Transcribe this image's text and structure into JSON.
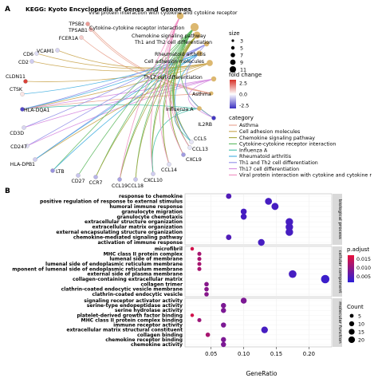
{
  "panel_a": {
    "label": "A",
    "title": "KEGG: Kyoto Encyclopedia of Genes and Genomes",
    "size_legend_title": "size",
    "size_values": [
      3,
      5,
      7,
      9,
      11
    ],
    "fold_legend_title": "fold change",
    "fold_ticks": [
      "2.5",
      "0.0",
      "-2.5"
    ],
    "category_legend_title": "category",
    "colors": {
      "term": "#dcb870",
      "fold_high": "#d73027",
      "fold_mid": "#ffffff",
      "fold_low": "#3a2fc0"
    }
  },
  "panel_b": {
    "label": "B",
    "x_axis_label": "GeneRatio",
    "p_legend_title": "p.adjust",
    "p_ticks": [
      "0.015",
      "0.010",
      "0.005"
    ],
    "count_legend_title": "Count",
    "count_values": [
      5,
      10,
      15,
      20
    ],
    "colors": {
      "p_high": "#e8103a",
      "p_low": "#2b1fd8",
      "strip_bg": "#d9d9d9",
      "panel_bg": "#ffffff"
    }
  },
  "chart_data": [
    {
      "type": "network",
      "categories": [
        {
          "name": "Asthma",
          "color": "#e8a08c"
        },
        {
          "name": "Cell adhesion molecules",
          "color": "#c9a44c"
        },
        {
          "name": "Chemokine signaling pathway",
          "color": "#a3a53a"
        },
        {
          "name": "Cytokine-cytokine receptor interaction",
          "color": "#5bb85e"
        },
        {
          "name": "Influenza A",
          "color": "#3fbfa8"
        },
        {
          "name": "Rheumatoid arthritis",
          "color": "#40aee0"
        },
        {
          "name": "Th1 and Th2 cell differentiation",
          "color": "#8f8de8"
        },
        {
          "name": "Th17 cell differentiation",
          "color": "#d58ae0"
        },
        {
          "name": "Viral protein interaction with cytokine and cytokine r",
          "color": "#f08cc0"
        }
      ],
      "genes": [
        {
          "name": "TPSB2",
          "fc": 1.2
        },
        {
          "name": "TPSAB1",
          "fc": 0.9
        },
        {
          "name": "FCER1A",
          "fc": 0.6
        },
        {
          "name": "VCAM1",
          "fc": -0.5
        },
        {
          "name": "CD6",
          "fc": -0.4
        },
        {
          "name": "CD2",
          "fc": -0.6
        },
        {
          "name": "CLDN11",
          "fc": 2.3
        },
        {
          "name": "CTSK",
          "fc": 0.3
        },
        {
          "name": "HLA-DQA1",
          "fc": -2.2
        },
        {
          "name": "CD3D",
          "fc": -0.5
        },
        {
          "name": "CD247",
          "fc": -0.4
        },
        {
          "name": "HLA-DPB1",
          "fc": -0.6
        },
        {
          "name": "LTB",
          "fc": -1.3
        },
        {
          "name": "CD27",
          "fc": -0.7
        },
        {
          "name": "CCR7",
          "fc": -0.9
        },
        {
          "name": "CCL19",
          "fc": -1.1
        },
        {
          "name": "CCL18",
          "fc": -0.7
        },
        {
          "name": "CXCL10",
          "fc": -0.6
        },
        {
          "name": "CCL14",
          "fc": -0.4
        },
        {
          "name": "CXCL9",
          "fc": -1.2
        },
        {
          "name": "CCL13",
          "fc": -0.3
        },
        {
          "name": "CCL5",
          "fc": -0.3
        },
        {
          "name": "IL2RB",
          "fc": -2.4
        }
      ],
      "terms": [
        {
          "name": "Viral protein interaction with cytokine and cytokine receptor",
          "size": 8
        },
        {
          "name": "Cytokine-cytokine receptor interaction",
          "size": 11
        },
        {
          "name": "Chemokine signaling pathway",
          "size": 9
        },
        {
          "name": "Th1 and Th2 cell differentiation",
          "size": 5
        },
        {
          "name": "Rheumatoid arthritis",
          "size": 6
        },
        {
          "name": "Cell adhesion molecules",
          "size": 7
        },
        {
          "name": "Th17 cell differentiation",
          "size": 5
        },
        {
          "name": "Asthma",
          "size": 3
        },
        {
          "name": "Influenza A",
          "size": 4
        }
      ]
    },
    {
      "type": "scatter",
      "xlabel": "GeneRatio",
      "x_ticks": [
        0.05,
        0.1,
        0.15,
        0.2
      ],
      "xlim": [
        0.01,
        0.235
      ],
      "p_range": [
        0.0005,
        0.018
      ],
      "count_range": [
        3,
        22
      ],
      "facets": [
        {
          "name": "biological process",
          "points": [
            {
              "term": "response to chemokine",
              "x": 0.077,
              "count": 7,
              "p": 0.004
            },
            {
              "term": "positive regulation of response to external stimulus",
              "x": 0.138,
              "count": 13,
              "p": 0.003
            },
            {
              "term": "humoral immune response",
              "x": 0.148,
              "count": 14,
              "p": 0.003
            },
            {
              "term": "granulocyte migration",
              "x": 0.1,
              "count": 9,
              "p": 0.003
            },
            {
              "term": "granulocyte chemotaxis",
              "x": 0.1,
              "count": 9,
              "p": 0.003
            },
            {
              "term": "extracellular structure organization",
              "x": 0.17,
              "count": 16,
              "p": 0.003
            },
            {
              "term": "extracellular matrix organization",
              "x": 0.17,
              "count": 16,
              "p": 0.003
            },
            {
              "term": "external encapsulating structure organization",
              "x": 0.17,
              "count": 16,
              "p": 0.003
            },
            {
              "term": "chemokine-mediated signaling pathway",
              "x": 0.077,
              "count": 7,
              "p": 0.004
            },
            {
              "term": "activation of immune response",
              "x": 0.127,
              "count": 12,
              "p": 0.003
            }
          ]
        },
        {
          "name": "cellular component",
          "points": [
            {
              "term": "microfibril",
              "x": 0.021,
              "count": 2,
              "p": 0.016
            },
            {
              "term": "MHC class II protein complex",
              "x": 0.032,
              "count": 3,
              "p": 0.012
            },
            {
              "term": "lumenal side of membrane",
              "x": 0.032,
              "count": 3,
              "p": 0.012
            },
            {
              "term": "lumenal side of endoplasmic reticulum membrane",
              "x": 0.032,
              "count": 3,
              "p": 0.012
            },
            {
              "term": "mponent of lumenal side of endoplasmic reticulum membrane",
              "x": 0.032,
              "count": 3,
              "p": 0.012
            },
            {
              "term": "external side of plasma membrane",
              "x": 0.175,
              "count": 17,
              "p": 0.003
            },
            {
              "term": "collagen-containing extracellular matrix",
              "x": 0.225,
              "count": 21,
              "p": 0.002
            },
            {
              "term": "collagen trimer",
              "x": 0.043,
              "count": 4,
              "p": 0.009
            },
            {
              "term": "clathrin-coated endocytic vesicle membrane",
              "x": 0.043,
              "count": 4,
              "p": 0.009
            },
            {
              "term": "clathrin-coated endocytic vesicle",
              "x": 0.043,
              "count": 4,
              "p": 0.009
            }
          ]
        },
        {
          "name": "molecular function",
          "points": [
            {
              "term": "signaling receptor activator activity",
              "x": 0.1,
              "count": 9,
              "p": 0.008
            },
            {
              "term": "serine-type endopeptidase activity",
              "x": 0.069,
              "count": 6,
              "p": 0.008
            },
            {
              "term": "serine hydrolase activity",
              "x": 0.069,
              "count": 6,
              "p": 0.008
            },
            {
              "term": "platelet-derived growth factor binding",
              "x": 0.021,
              "count": 2,
              "p": 0.016
            },
            {
              "term": "MHC class II protein complex binding",
              "x": 0.032,
              "count": 3,
              "p": 0.011
            },
            {
              "term": "immune receptor activity",
              "x": 0.069,
              "count": 6,
              "p": 0.008
            },
            {
              "term": "extracellular matrix structural constituent",
              "x": 0.132,
              "count": 12,
              "p": 0.003
            },
            {
              "term": "collagen binding",
              "x": 0.045,
              "count": 4,
              "p": 0.012
            },
            {
              "term": "chemokine receptor binding",
              "x": 0.069,
              "count": 6,
              "p": 0.008
            },
            {
              "term": "chemokine activity",
              "x": 0.069,
              "count": 6,
              "p": 0.008
            }
          ]
        }
      ]
    }
  ]
}
